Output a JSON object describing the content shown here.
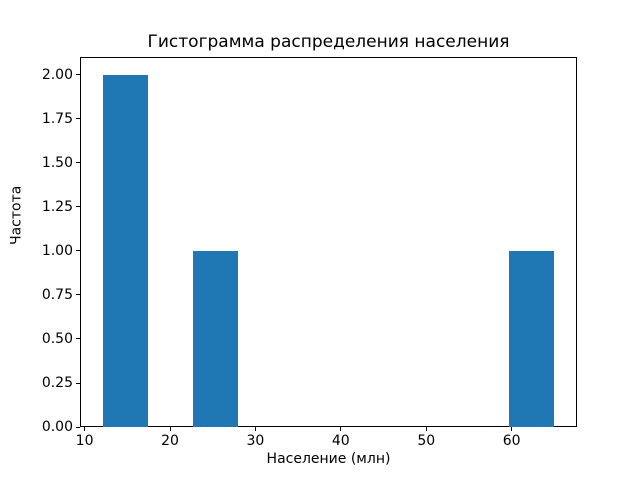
{
  "chart_data": {
    "type": "bar",
    "subtype": "histogram",
    "title": "Гистограмма распределения населения",
    "xlabel": "Население (млн)",
    "ylabel": "Частота",
    "bin_edges": [
      12.1,
      17.39,
      22.68,
      27.97,
      33.26,
      38.55,
      43.84,
      49.13,
      54.42,
      59.71,
      65.0
    ],
    "counts": [
      2,
      0,
      1,
      0,
      0,
      0,
      0,
      0,
      0,
      1
    ],
    "xlim": [
      9.46,
      67.65
    ],
    "ylim": [
      0,
      2.1
    ],
    "xtick_values": [
      10,
      20,
      30,
      40,
      50,
      60
    ],
    "xtick_labels": [
      "10",
      "20",
      "30",
      "40",
      "50",
      "60"
    ],
    "ytick_values": [
      0.0,
      0.25,
      0.5,
      0.75,
      1.0,
      1.25,
      1.5,
      1.75,
      2.0
    ],
    "ytick_labels": [
      "0.00",
      "0.25",
      "0.50",
      "0.75",
      "1.00",
      "1.25",
      "1.50",
      "1.75",
      "2.00"
    ],
    "bar_color": "#1f77b4",
    "axes_edge_color": "#000000",
    "background_color": "#ffffff",
    "grid": false,
    "legend": null
  }
}
